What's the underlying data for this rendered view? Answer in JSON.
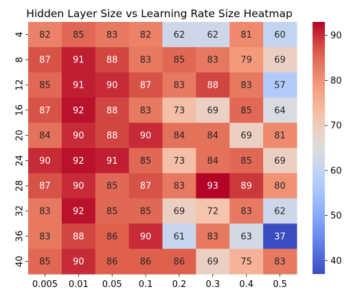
{
  "chart_data": {
    "type": "heatmap",
    "title": "Hidden Layer Size vs Learning Rate Size Heatmap",
    "xlabel": "",
    "ylabel": "",
    "x_categories": [
      "0.005",
      "0.01",
      "0.05",
      "0.1",
      "0.2",
      "0.3",
      "0.4",
      "0.5"
    ],
    "y_categories": [
      "4",
      "8",
      "12",
      "16",
      "20",
      "24",
      "28",
      "32",
      "36",
      "40"
    ],
    "values": [
      [
        82,
        85,
        83,
        82,
        62,
        62,
        81,
        60
      ],
      [
        87,
        91,
        88,
        83,
        85,
        83,
        79,
        69
      ],
      [
        85,
        91,
        90,
        87,
        83,
        88,
        83,
        57
      ],
      [
        87,
        92,
        88,
        83,
        73,
        69,
        85,
        64
      ],
      [
        84,
        90,
        88,
        90,
        84,
        84,
        69,
        81
      ],
      [
        90,
        92,
        91,
        85,
        73,
        84,
        85,
        69
      ],
      [
        87,
        90,
        85,
        87,
        83,
        93,
        89,
        80
      ],
      [
        83,
        92,
        85,
        85,
        69,
        72,
        83,
        62
      ],
      [
        83,
        88,
        86,
        90,
        61,
        83,
        63,
        37
      ],
      [
        85,
        90,
        86,
        86,
        86,
        69,
        75,
        83
      ]
    ],
    "colormap": "coolwarm",
    "vmin": 37,
    "vmax": 93,
    "colorbar_ticks": [
      "40",
      "50",
      "60",
      "70",
      "80",
      "90"
    ],
    "annotations": true,
    "grid": false
  }
}
